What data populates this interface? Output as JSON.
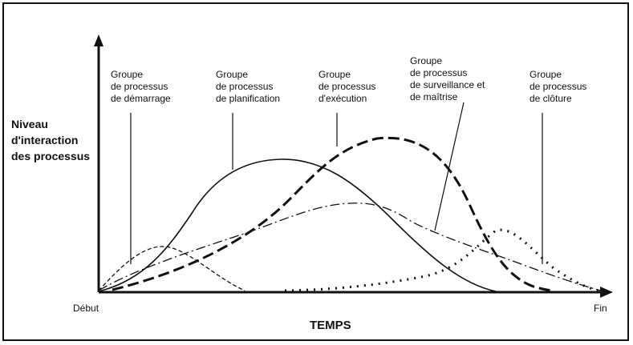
{
  "axes": {
    "y_title_lines": [
      "Niveau",
      "d'interaction",
      "des processus"
    ],
    "x_title": "TEMPS",
    "x_start": "Début",
    "x_end": "Fin"
  },
  "groups": [
    {
      "lines": [
        "Groupe",
        "de processus",
        "de démarrage"
      ]
    },
    {
      "lines": [
        "Groupe",
        "de processus",
        "de planification"
      ]
    },
    {
      "lines": [
        "Groupe",
        "de processus",
        "d'exécution"
      ]
    },
    {
      "lines": [
        "Groupe",
        "de processus",
        "de surveillance et",
        "de maîtrise"
      ]
    },
    {
      "lines": [
        "Groupe",
        "de processus",
        "de clôture"
      ]
    }
  ],
  "colors": {
    "ink": "#111111",
    "background": "#ffffff"
  }
}
